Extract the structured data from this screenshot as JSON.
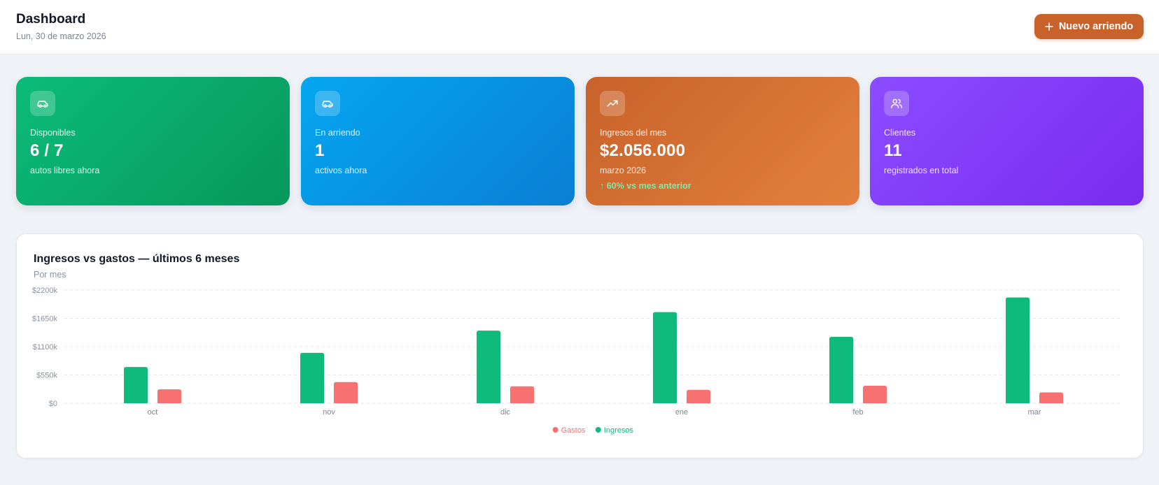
{
  "header": {
    "title": "Dashboard",
    "date": "Lun, 30 de marzo 2026",
    "new_button_label": "Nuevo arriendo"
  },
  "cards": [
    {
      "icon": "car-icon",
      "label": "Disponibles",
      "value": "6 / 7",
      "sub": "autos libres ahora",
      "color": "#0cbc7a"
    },
    {
      "icon": "car-icon",
      "label": "En arriendo",
      "value": "1",
      "sub": "activos ahora",
      "color": "#05a6f0"
    },
    {
      "icon": "trending-up-icon",
      "label": "Ingresos del mes",
      "value": "$2.056.000",
      "sub": "marzo 2026",
      "trend": "↑ 60% vs mes anterior",
      "color": "#c8622a"
    },
    {
      "icon": "users-icon",
      "label": "Clientes",
      "value": "11",
      "sub": "registrados en total",
      "color": "#8b4cff"
    }
  ],
  "panel": {
    "title": "Ingresos vs gastos — últimos 6 meses",
    "subtitle": "Por mes"
  },
  "chart_data": {
    "type": "bar",
    "categories": [
      "oct",
      "nov",
      "dic",
      "ene",
      "feb",
      "mar"
    ],
    "series": [
      {
        "name": "Ingresos",
        "color": "#10b97c",
        "values": [
          705000,
          980000,
          1410000,
          1770000,
          1290000,
          2056000
        ]
      },
      {
        "name": "Gastos",
        "color": "#f87171",
        "values": [
          270000,
          410000,
          330000,
          260000,
          340000,
          210000
        ]
      }
    ],
    "yticks": [
      "$0",
      "$550k",
      "$1100k",
      "$1650k",
      "$2200k"
    ],
    "ytick_values": [
      0,
      550000,
      1100000,
      1650000,
      2200000
    ],
    "ylim": [
      0,
      2200000
    ],
    "legend": [
      {
        "name": "Gastos",
        "color": "#f87171"
      },
      {
        "name": "Ingresos",
        "color": "#10b97c"
      }
    ],
    "legend_position": "bottom-center",
    "grid": true
  },
  "colors": {
    "accent": "#c8622a",
    "ingresos": "#10b97c",
    "gastos": "#f87171",
    "trend_positive": "#7ee8a8"
  }
}
